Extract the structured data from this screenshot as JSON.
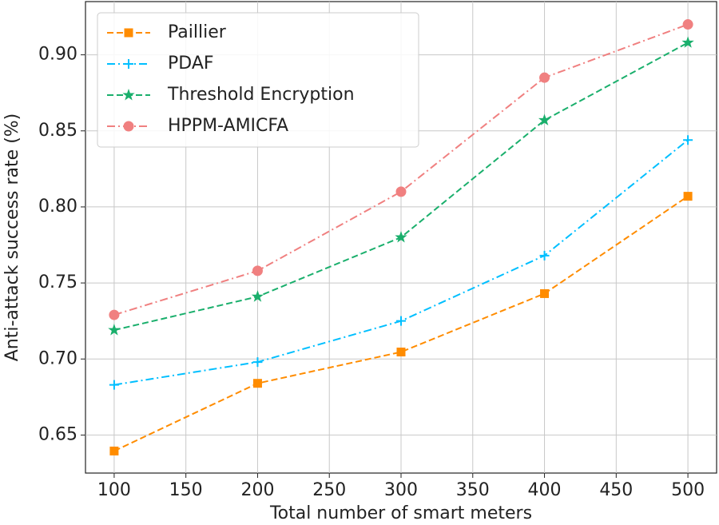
{
  "chart_data": {
    "type": "line",
    "xlabel": "Total number of smart meters",
    "ylabel": "Anti-attack success rate (%)",
    "x": [
      100,
      200,
      300,
      400,
      500
    ],
    "xlim": [
      80,
      520
    ],
    "xticks": [
      100,
      150,
      200,
      250,
      300,
      350,
      400,
      450,
      500
    ],
    "ylim": [
      0.625,
      0.935
    ],
    "yticks": [
      0.65,
      {
        "value": 0.7,
        "label": "0.70"
      },
      0.75,
      {
        "value": 0.8,
        "label": "0.80"
      },
      0.85,
      {
        "value": 0.9,
        "label": "0.90"
      }
    ],
    "grid": true,
    "legend": "upper left",
    "series": [
      {
        "name": "Paillier",
        "color": "#ff8c00",
        "marker": "square",
        "linestyle": "dashed",
        "values": [
          0.6395,
          0.684,
          0.7046,
          0.743,
          0.807
        ]
      },
      {
        "name": "PDAF",
        "color": "#00bfff",
        "marker": "plus",
        "linestyle": "dashdot",
        "values": [
          0.683,
          0.698,
          0.725,
          0.768,
          0.844
        ]
      },
      {
        "name": "Threshold Encryption",
        "color": "#1aaf6c",
        "marker": "star",
        "linestyle": "dashed",
        "values": [
          0.719,
          0.741,
          0.78,
          0.857,
          0.908
        ]
      },
      {
        "name": "HPPM-AMICFA",
        "color": "#f08080",
        "marker": "circle",
        "linestyle": "dashdot",
        "values": [
          0.729,
          0.758,
          0.81,
          0.885,
          0.92
        ]
      }
    ]
  }
}
